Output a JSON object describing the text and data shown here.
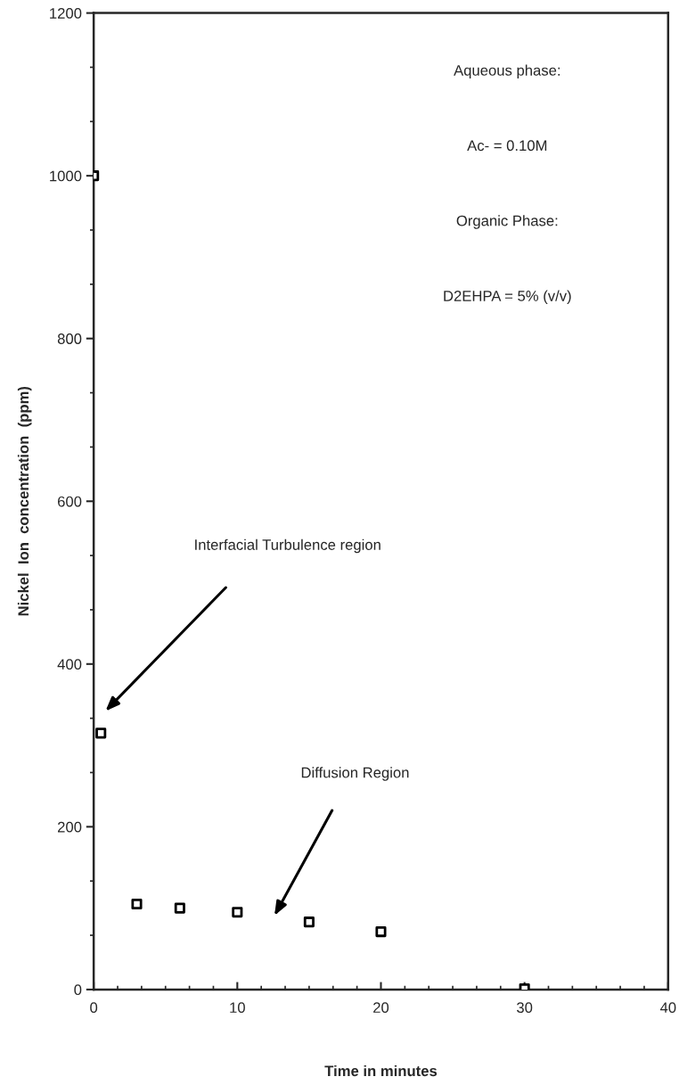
{
  "chart_data": {
    "type": "scatter",
    "xlabel": "Time in minutes",
    "ylabel": "Nickel  Ion  concentration  (ppm)",
    "x": [
      0,
      0.5,
      3,
      6,
      10,
      15,
      20,
      30
    ],
    "series": [
      {
        "color": "#000000",
        "values": [
          1000,
          315,
          105,
          100,
          95,
          83,
          71,
          1
        ]
      }
    ],
    "marker": "square",
    "xlim": [
      0,
      40
    ],
    "xticks": [
      0,
      10,
      20,
      30,
      40
    ],
    "ylim": [
      0,
      1200
    ],
    "yticks": [
      0,
      200,
      400,
      600,
      800,
      1000,
      1200
    ],
    "grid": false,
    "legend": false,
    "annotations": [
      "Interfacial Turbulence region",
      "Diffusion Region",
      "Aqueous phase:",
      "Ac- = 0.10M",
      "Organic Phase:",
      "D2EHPA = 5% (v/v)"
    ]
  }
}
